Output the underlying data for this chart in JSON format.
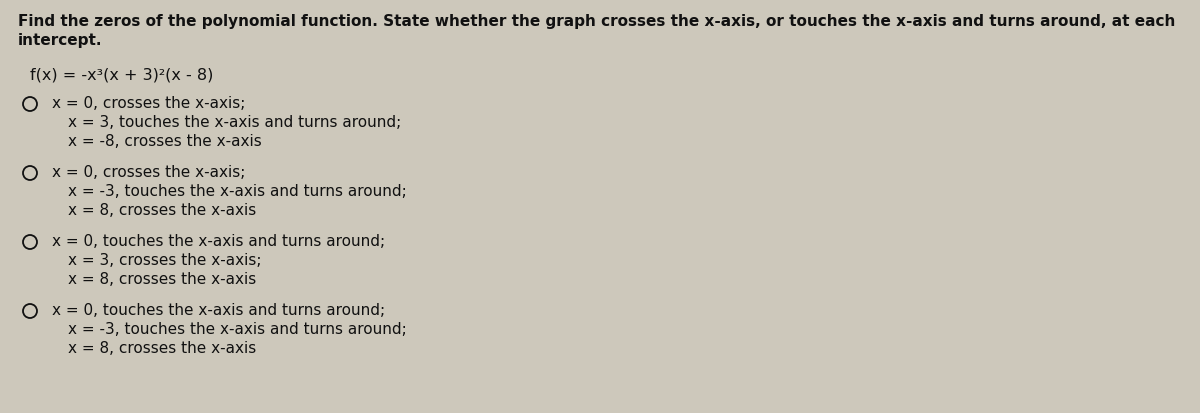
{
  "background_color": "#cdc8bb",
  "title_line1": "Find the zeros of the polynomial function. State whether the graph crosses the x-axis, or touches the x-axis and turns around, at each",
  "title_line2": "intercept.",
  "function_label": "f(x) = -x³(x + 3)²(x - 8)",
  "options": [
    {
      "lines": [
        "x = 0, crosses the x-axis;",
        "x = 3, touches the x-axis and turns around;",
        "x = -8, crosses the x-axis"
      ]
    },
    {
      "lines": [
        "x = 0, crosses the x-axis;",
        "x = -3, touches the x-axis and turns around;",
        "x = 8, crosses the x-axis"
      ]
    },
    {
      "lines": [
        "x = 0, touches the x-axis and turns around;",
        "x = 3, crosses the x-axis;",
        "x = 8, crosses the x-axis"
      ]
    },
    {
      "lines": [
        "x = 0, touches the x-axis and turns around;",
        "x = -3, touches the x-axis and turns around;",
        "x = 8, crosses the x-axis"
      ]
    }
  ],
  "title_fontsize": 11.0,
  "function_fontsize": 11.5,
  "option_fontsize": 11.0,
  "text_color": "#111111"
}
